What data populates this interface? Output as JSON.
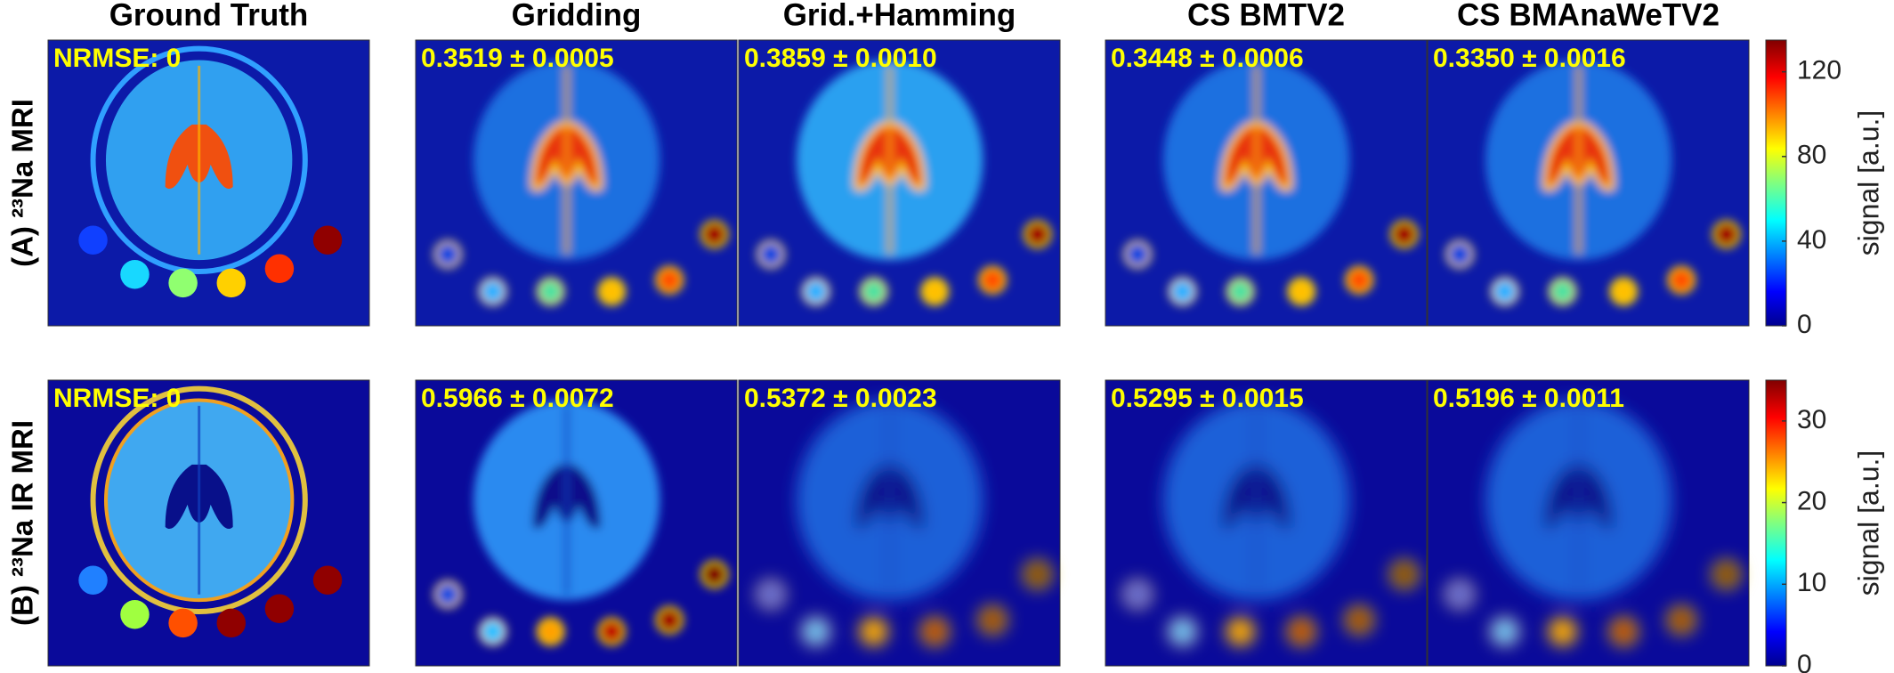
{
  "columns": [
    "Ground Truth",
    "Gridding",
    "Grid.+Hamming",
    "CS BMTV2",
    "CS BMAnaWeTV2"
  ],
  "rows": [
    {
      "label": "(A) ²³Na MRI",
      "panels": [
        "NRMSE: 0",
        "0.3519 ± 0.0005",
        "0.3859 ± 0.0010",
        "0.3448 ± 0.0006",
        "0.3350 ± 0.0016"
      ],
      "colorbar": {
        "lim": [
          0,
          135
        ],
        "ticks": [
          0,
          40,
          80,
          120
        ],
        "label": "signal [a.u.]"
      }
    },
    {
      "label": "(B) ²³Na IR MRI",
      "panels": [
        "NRMSE: 0",
        "0.5966 ± 0.0072",
        "0.5372 ± 0.0023",
        "0.5295 ± 0.0015",
        "0.5196 ± 0.0011"
      ],
      "colorbar": {
        "lim": [
          0,
          35
        ],
        "ticks": [
          0,
          10,
          20,
          30
        ],
        "label": "signal [a.u.]"
      }
    }
  ]
}
